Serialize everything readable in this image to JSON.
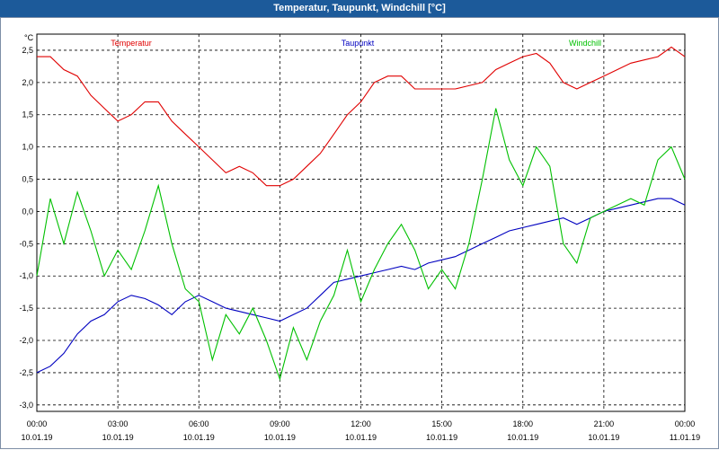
{
  "chart_data": {
    "type": "line",
    "title": "Temperatur, Taupunkt, Windchill [°C]",
    "ylabel": "°C",
    "xlabel": "",
    "ylim": [
      -3.0,
      2.5
    ],
    "yticks": [
      "2,5",
      "2,0",
      "1,5",
      "1,0",
      "0,5",
      "0,0",
      "-0,5",
      "-1,0",
      "-1,5",
      "-2,0",
      "-2,5",
      "-3,0"
    ],
    "xticks": [
      {
        "time": "00:00",
        "date": "10.01.19"
      },
      {
        "time": "03:00",
        "date": "10.01.19"
      },
      {
        "time": "06:00",
        "date": "10.01.19"
      },
      {
        "time": "09:00",
        "date": "10.01.19"
      },
      {
        "time": "12:00",
        "date": "10.01.19"
      },
      {
        "time": "15:00",
        "date": "10.01.19"
      },
      {
        "time": "18:00",
        "date": "10.01.19"
      },
      {
        "time": "21:00",
        "date": "10.01.19"
      },
      {
        "time": "00:00",
        "date": "11.01.19"
      }
    ],
    "x_hours": [
      0,
      0.5,
      1,
      1.5,
      2,
      2.5,
      3,
      3.5,
      4,
      4.5,
      5,
      5.5,
      6,
      6.5,
      7,
      7.5,
      8,
      8.5,
      9,
      9.5,
      10,
      10.5,
      11,
      11.5,
      12,
      12.5,
      13,
      13.5,
      14,
      14.5,
      15,
      15.5,
      16,
      16.5,
      17,
      17.5,
      18,
      18.5,
      19,
      19.5,
      20,
      20.5,
      21,
      21.5,
      22,
      22.5,
      23,
      23.5,
      24
    ],
    "grid": true,
    "series": [
      {
        "name": "Temperatur",
        "color": "#e00000",
        "values": [
          2.4,
          2.4,
          2.2,
          2.1,
          1.8,
          1.6,
          1.4,
          1.5,
          1.7,
          1.7,
          1.4,
          1.2,
          1.0,
          0.8,
          0.6,
          0.7,
          0.6,
          0.4,
          0.4,
          0.5,
          0.7,
          0.9,
          1.2,
          1.5,
          1.7,
          2.0,
          2.1,
          2.1,
          1.9,
          1.9,
          1.9,
          1.9,
          1.95,
          2.0,
          2.2,
          2.3,
          2.4,
          2.45,
          2.3,
          2.0,
          1.9,
          2.0,
          2.1,
          2.2,
          2.3,
          2.35,
          2.4,
          2.55,
          2.4
        ]
      },
      {
        "name": "Taupunkt",
        "color": "#0000c0",
        "values": [
          -2.5,
          -2.4,
          -2.2,
          -1.9,
          -1.7,
          -1.6,
          -1.4,
          -1.3,
          -1.35,
          -1.45,
          -1.6,
          -1.4,
          -1.3,
          -1.4,
          -1.5,
          -1.55,
          -1.6,
          -1.65,
          -1.7,
          -1.6,
          -1.5,
          -1.3,
          -1.1,
          -1.05,
          -1.0,
          -0.95,
          -0.9,
          -0.85,
          -0.9,
          -0.8,
          -0.75,
          -0.7,
          -0.6,
          -0.5,
          -0.4,
          -0.3,
          -0.25,
          -0.2,
          -0.15,
          -0.1,
          -0.2,
          -0.1,
          0.0,
          0.05,
          0.1,
          0.15,
          0.2,
          0.2,
          0.1
        ]
      },
      {
        "name": "Windchill",
        "color": "#00c000",
        "values": [
          -1.0,
          0.2,
          -0.5,
          0.3,
          -0.3,
          -1.0,
          -0.6,
          -0.9,
          -0.3,
          0.4,
          -0.5,
          -1.2,
          -1.4,
          -2.3,
          -1.6,
          -1.9,
          -1.5,
          -2.0,
          -2.6,
          -1.8,
          -2.3,
          -1.7,
          -1.3,
          -0.6,
          -1.4,
          -0.9,
          -0.5,
          -0.2,
          -0.6,
          -1.2,
          -0.9,
          -1.2,
          -0.5,
          0.5,
          1.6,
          0.8,
          0.4,
          1.0,
          0.7,
          -0.5,
          -0.8,
          -0.1,
          0.0,
          0.1,
          0.2,
          0.1,
          0.8,
          1.0,
          0.5
        ]
      }
    ]
  }
}
